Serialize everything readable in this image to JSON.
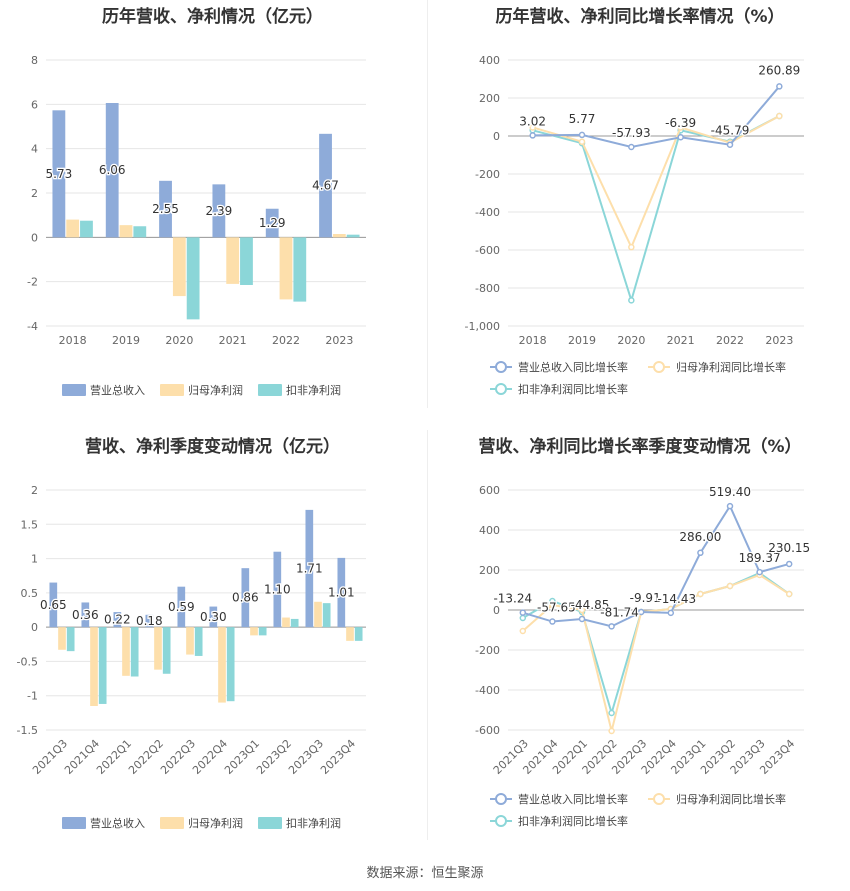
{
  "footer": {
    "source": "数据来源：恒生聚源"
  },
  "legend_labels": {
    "bar": [
      "营业总收入",
      "归母净利润",
      "扣非净利润"
    ],
    "line": [
      "营业总收入同比增长率",
      "归母净利润同比增长率",
      "扣非净利润同比增长率"
    ]
  },
  "colors": {
    "revenue": "#8eabd9",
    "net_profit": "#fddfab",
    "deducted_profit": "#8bd6d8"
  },
  "chart_data": [
    {
      "type": "bar",
      "title": "历年营收、净利情况（亿元）",
      "categories": [
        "2018",
        "2019",
        "2020",
        "2021",
        "2022",
        "2023"
      ],
      "series": [
        {
          "name": "营业总收入",
          "values": [
            5.73,
            6.06,
            2.55,
            2.39,
            1.29,
            4.67
          ]
        },
        {
          "name": "归母净利润",
          "values": [
            0.8,
            0.55,
            -2.65,
            -2.1,
            -2.8,
            0.15
          ]
        },
        {
          "name": "扣非净利润",
          "values": [
            0.75,
            0.5,
            -3.7,
            -2.15,
            -2.9,
            0.12
          ]
        }
      ],
      "data_labels": [
        "5.73",
        "6.06",
        "2.55",
        "2.39",
        "1.29",
        "4.67"
      ],
      "ylim": [
        -4,
        8
      ],
      "yticks": [
        "8",
        "6",
        "4",
        "2",
        "0",
        "-2",
        "-4"
      ],
      "grid": true,
      "legend": "bottom"
    },
    {
      "type": "line",
      "title": "历年营收、净利同比增长率情况（%）",
      "categories": [
        "2018",
        "2019",
        "2020",
        "2021",
        "2022",
        "2023"
      ],
      "series": [
        {
          "name": "营业总收入同比增长率",
          "values": [
            3.02,
            5.77,
            -57.93,
            -6.39,
            -45.79,
            260.89
          ]
        },
        {
          "name": "归母净利润同比增长率",
          "values": [
            45,
            -30,
            -585,
            45,
            -35,
            105
          ]
        },
        {
          "name": "扣非净利润同比增长率",
          "values": [
            30,
            -38,
            -865,
            30,
            -30,
            105
          ]
        }
      ],
      "data_labels": [
        "3.02",
        "5.77",
        "-57.93",
        "-6.39",
        "-45.79",
        "260.89"
      ],
      "ylim": [
        -1000,
        400
      ],
      "yticks": [
        "400",
        "200",
        "0",
        "-200",
        "-400",
        "-600",
        "-800",
        "-1,000"
      ],
      "grid": true,
      "legend": "bottom"
    },
    {
      "type": "bar",
      "title": "营收、净利季度变动情况（亿元）",
      "categories": [
        "2021Q3",
        "2021Q4",
        "2022Q1",
        "2022Q2",
        "2022Q3",
        "2022Q4",
        "2023Q1",
        "2023Q2",
        "2023Q3",
        "2023Q4"
      ],
      "series": [
        {
          "name": "营业总收入",
          "values": [
            0.65,
            0.36,
            0.22,
            0.18,
            0.59,
            0.3,
            0.86,
            1.1,
            1.71,
            1.01
          ]
        },
        {
          "name": "归母净利润",
          "values": [
            -0.33,
            -1.15,
            -0.71,
            -0.62,
            -0.4,
            -1.1,
            -0.12,
            0.14,
            0.37,
            -0.2
          ]
        },
        {
          "name": "扣非净利润",
          "values": [
            -0.35,
            -1.12,
            -0.72,
            -0.68,
            -0.42,
            -1.08,
            -0.12,
            0.12,
            0.35,
            -0.2
          ]
        }
      ],
      "data_labels": [
        "0.65",
        "0.36",
        "0.22",
        "0.18",
        "0.59",
        "0.30",
        "0.86",
        "1.10",
        "1.71",
        "1.01"
      ],
      "ylim": [
        -1.5,
        2
      ],
      "yticks": [
        "2",
        "1.5",
        "1",
        "0.5",
        "0",
        "-0.5",
        "-1",
        "-1.5"
      ],
      "grid": true,
      "legend": "bottom"
    },
    {
      "type": "line",
      "title": "营收、净利同比增长率季度变动情况（%）",
      "categories": [
        "2021Q3",
        "2021Q4",
        "2022Q1",
        "2022Q2",
        "2022Q3",
        "2022Q4",
        "2023Q1",
        "2023Q2",
        "2023Q3",
        "2023Q4"
      ],
      "series": [
        {
          "name": "营业总收入同比增长率",
          "values": [
            -13.24,
            -57.65,
            -44.85,
            -81.74,
            -9.91,
            -14.43,
            286.0,
            519.4,
            189.37,
            230.15
          ]
        },
        {
          "name": "归母净利润同比增长率",
          "values": [
            -105,
            25,
            0,
            -605,
            -10,
            5,
            80,
            120,
            175,
            80
          ]
        },
        {
          "name": "扣非净利润同比增长率",
          "values": [
            -40,
            45,
            -10,
            -515,
            -10,
            5,
            80,
            120,
            185,
            80
          ]
        }
      ],
      "data_labels": [
        "-13.24",
        "-57.65",
        "-44.85",
        "-81.74",
        "-9.91",
        "-14.43",
        "286.00",
        "519.40",
        "189.37",
        "230.15"
      ],
      "ylim": [
        -600,
        600
      ],
      "yticks": [
        "600",
        "400",
        "200",
        "0",
        "-200",
        "-400",
        "-600"
      ],
      "grid": true,
      "legend": "bottom"
    }
  ]
}
